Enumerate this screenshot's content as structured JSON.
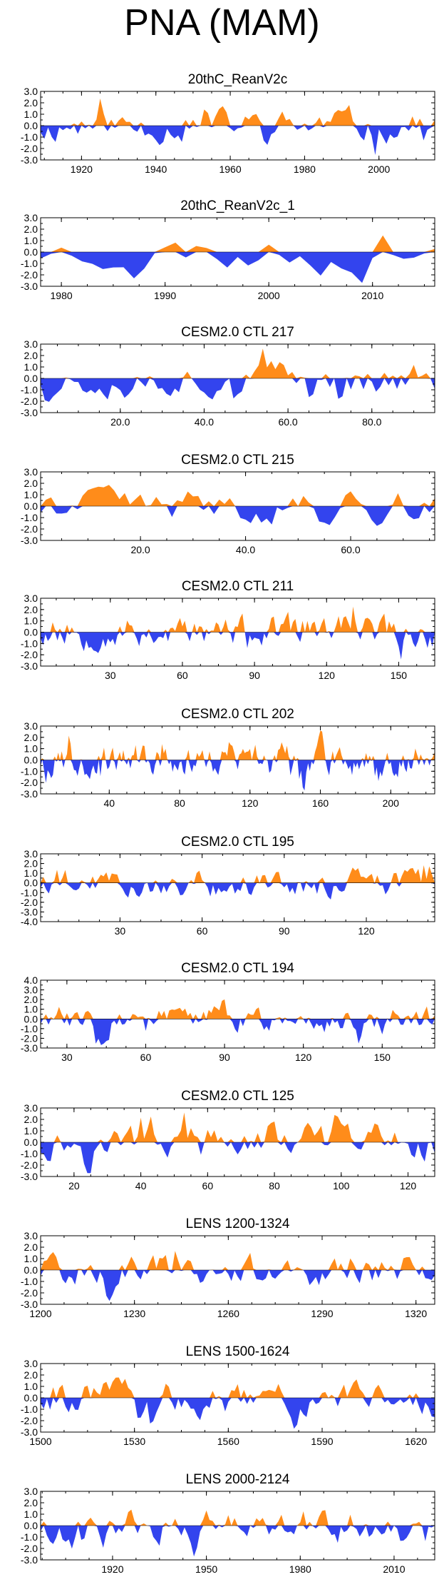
{
  "title": "PNA (MAM)",
  "colors": {
    "positive": "#ff8c1a",
    "negative": "#3344ee",
    "axis": "#000000"
  },
  "chart_data": [
    {
      "type": "area",
      "title": "20thC_ReanV2c",
      "xlim": [
        1909,
        2015
      ],
      "ylim": [
        -3,
        3
      ],
      "yticks": [
        "3.0",
        "2.0",
        "1.0",
        "0.0",
        "-1.0",
        "-2.0",
        "-3.0"
      ],
      "xticks": [
        {
          "value": 1920,
          "label": "1920"
        },
        {
          "value": 1940,
          "label": "1940"
        },
        {
          "value": 1960,
          "label": "1960"
        },
        {
          "value": 1980,
          "label": "1980"
        },
        {
          "value": 2000,
          "label": "2000"
        }
      ],
      "seed": 11
    },
    {
      "type": "area",
      "title": "20thC_ReanV2c_1",
      "xlim": [
        1978,
        2016
      ],
      "ylim": [
        -3,
        3
      ],
      "yticks": [
        "3.0",
        "2.0",
        "1.0",
        "0.0",
        "-1.0",
        "-2.0",
        "-3.0"
      ],
      "xticks": [
        {
          "value": 1980,
          "label": "1980"
        },
        {
          "value": 1990,
          "label": "1990"
        },
        {
          "value": 2000,
          "label": "2000"
        },
        {
          "value": 2010,
          "label": "2010"
        }
      ],
      "seed": 23
    },
    {
      "type": "area",
      "title": "CESM2.0 CTL 217",
      "xlim": [
        1,
        95
      ],
      "ylim": [
        -3,
        3
      ],
      "yticks": [
        "3.0",
        "2.0",
        "1.0",
        "0.0",
        "-1.0",
        "-2.0",
        "-3.0"
      ],
      "xticks": [
        {
          "value": 20,
          "label": "20.0"
        },
        {
          "value": 40,
          "label": "40.0"
        },
        {
          "value": 60,
          "label": "60.0"
        },
        {
          "value": 80,
          "label": "80.0"
        }
      ],
      "seed": 37
    },
    {
      "type": "area",
      "title": "CESM2.0 CTL 215",
      "xlim": [
        1,
        76
      ],
      "ylim": [
        -3,
        3
      ],
      "yticks": [
        "3.0",
        "2.0",
        "1.0",
        "0.0",
        "-1.0",
        "-2.0",
        "-3.0"
      ],
      "xticks": [
        {
          "value": 20,
          "label": "20.0"
        },
        {
          "value": 40,
          "label": "40.0"
        },
        {
          "value": 60,
          "label": "60.0"
        }
      ],
      "seed": 41
    },
    {
      "type": "area",
      "title": "CESM2.0 CTL 211",
      "xlim": [
        1,
        165
      ],
      "ylim": [
        -3,
        3
      ],
      "yticks": [
        "3.0",
        "2.0",
        "1.0",
        "0.0",
        "-1.0",
        "-2.0",
        "-3.0"
      ],
      "xticks": [
        {
          "value": 30,
          "label": "30"
        },
        {
          "value": 60,
          "label": "60"
        },
        {
          "value": 90,
          "label": "90"
        },
        {
          "value": 120,
          "label": "120"
        },
        {
          "value": 150,
          "label": "150"
        }
      ],
      "seed": 53
    },
    {
      "type": "area",
      "title": "CESM2.0 CTL 202",
      "xlim": [
        1,
        225
      ],
      "ylim": [
        -3,
        3
      ],
      "yticks": [
        "3.0",
        "2.0",
        "1.0",
        "0.0",
        "-1.0",
        "-2.0",
        "-3.0"
      ],
      "xticks": [
        {
          "value": 40,
          "label": "40"
        },
        {
          "value": 80,
          "label": "80"
        },
        {
          "value": 120,
          "label": "120"
        },
        {
          "value": 160,
          "label": "160"
        },
        {
          "value": 200,
          "label": "200"
        }
      ],
      "seed": 67
    },
    {
      "type": "area",
      "title": "CESM2.0 CTL 195",
      "xlim": [
        1,
        145
      ],
      "ylim": [
        -4,
        3
      ],
      "yticks": [
        "3.0",
        "2.0",
        "1.0",
        "0.0",
        "-1.0",
        "-2.0",
        "-3.0",
        "-4.0"
      ],
      "xticks": [
        {
          "value": 30,
          "label": "30"
        },
        {
          "value": 60,
          "label": "60"
        },
        {
          "value": 90,
          "label": "90"
        },
        {
          "value": 120,
          "label": "120"
        }
      ],
      "seed": 79
    },
    {
      "type": "area",
      "title": "CESM2.0 CTL 194",
      "xlim": [
        20,
        170
      ],
      "ylim": [
        -3,
        4
      ],
      "yticks": [
        "4.0",
        "3.0",
        "2.0",
        "1.0",
        "0.0",
        "-1.0",
        "-2.0",
        "-3.0"
      ],
      "xticks": [
        {
          "value": 30,
          "label": "30"
        },
        {
          "value": 60,
          "label": "60"
        },
        {
          "value": 90,
          "label": "90"
        },
        {
          "value": 120,
          "label": "120"
        },
        {
          "value": 150,
          "label": "150"
        }
      ],
      "seed": 83
    },
    {
      "type": "area",
      "title": "CESM2.0 CTL 125",
      "xlim": [
        10,
        128
      ],
      "ylim": [
        -3,
        3
      ],
      "yticks": [
        "3.0",
        "2.0",
        "1.0",
        "0.0",
        "-1.0",
        "-2.0",
        "-3.0"
      ],
      "xticks": [
        {
          "value": 20,
          "label": "20"
        },
        {
          "value": 40,
          "label": "40"
        },
        {
          "value": 60,
          "label": "60"
        },
        {
          "value": 80,
          "label": "80"
        },
        {
          "value": 100,
          "label": "100"
        },
        {
          "value": 120,
          "label": "120"
        }
      ],
      "seed": 97
    },
    {
      "type": "area",
      "title": "LENS 1200-1324",
      "xlim": [
        1200,
        1326
      ],
      "ylim": [
        -3,
        3
      ],
      "yticks": [
        "3.0",
        "2.0",
        "1.0",
        "0.0",
        "-1.0",
        "-2.0",
        "-3.0"
      ],
      "xticks": [
        {
          "value": 1200,
          "label": "1200"
        },
        {
          "value": 1230,
          "label": "1230"
        },
        {
          "value": 1260,
          "label": "1260"
        },
        {
          "value": 1290,
          "label": "1290"
        },
        {
          "value": 1320,
          "label": "1320"
        }
      ],
      "seed": 101
    },
    {
      "type": "area",
      "title": "LENS 1500-1624",
      "xlim": [
        1500,
        1626
      ],
      "ylim": [
        -3,
        3
      ],
      "yticks": [
        "3.0",
        "2.0",
        "1.0",
        "0.0",
        "-1.0",
        "-2.0",
        "-3.0"
      ],
      "xticks": [
        {
          "value": 1500,
          "label": "1500"
        },
        {
          "value": 1530,
          "label": "1530"
        },
        {
          "value": 1560,
          "label": "1560"
        },
        {
          "value": 1590,
          "label": "1590"
        },
        {
          "value": 1620,
          "label": "1620"
        }
      ],
      "seed": 113
    },
    {
      "type": "area",
      "title": "LENS 2000-2124",
      "xlim": [
        1897,
        2023
      ],
      "ylim": [
        -3,
        3
      ],
      "yticks": [
        "3.0",
        "2.0",
        "1.0",
        "0.0",
        "-1.0",
        "-2.0",
        "-3.0"
      ],
      "xticks": [
        {
          "value": 1920,
          "label": "1920"
        },
        {
          "value": 1950,
          "label": "1950"
        },
        {
          "value": 1980,
          "label": "1980"
        },
        {
          "value": 2010,
          "label": "2010"
        }
      ],
      "seed": 127
    }
  ]
}
